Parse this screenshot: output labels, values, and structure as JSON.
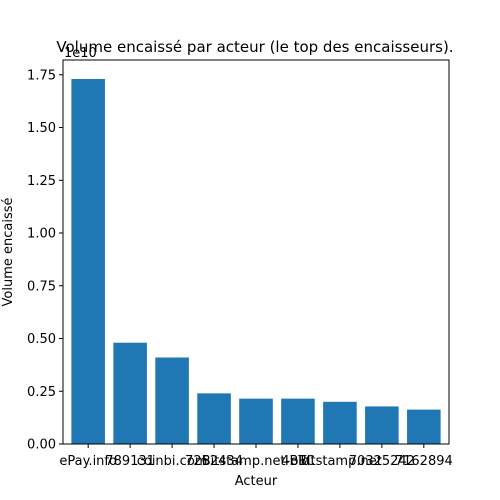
{
  "chart_data": {
    "type": "bar",
    "title": "Volume encaissé par acteur (le top des encaisseurs).",
    "xlabel": "Acteur",
    "ylabel": "Volume encaissé",
    "offset_label": "1e10",
    "categories": [
      "ePay.info",
      "789131",
      "coinbi.com",
      "7262434",
      "Bitstamp.net-old",
      "4BTC",
      "Bitstamp.net",
      "70325242",
      "7162894"
    ],
    "values": [
      17300000000.0,
      4800000000.0,
      4100000000.0,
      2400000000.0,
      2150000000.0,
      2150000000.0,
      2000000000.0,
      1780000000.0,
      1630000000.0
    ],
    "ylim": [
      0,
      18200000000.0
    ],
    "yticks": [
      0,
      2500000000.0,
      5000000000.0,
      7500000000.0,
      10000000000.0,
      12500000000.0,
      15000000000.0,
      17500000000.0
    ],
    "ytick_labels": [
      "0.00",
      "0.25",
      "0.50",
      "0.75",
      "1.00",
      "1.25",
      "1.50",
      "1.75"
    ],
    "bar_color": "#1f77b4",
    "grid": false,
    "legend": "none"
  }
}
